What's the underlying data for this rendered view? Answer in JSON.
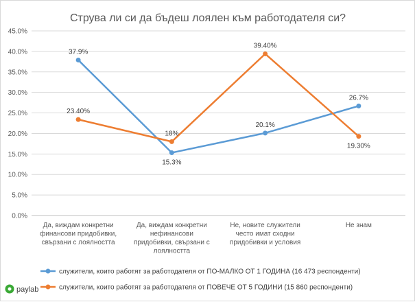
{
  "chart_data": {
    "type": "line",
    "title": "Струва ли си да бъдеш лоялен към работодателя си?",
    "categories": [
      [
        "Да, виждам конкретни",
        "финансови придобивки,",
        "свързани с лоялността"
      ],
      [
        "Да, виждам конкретни",
        "нефинансови",
        "придобивки, свързани с",
        "лоялността"
      ],
      [
        "Не, новите служители",
        "често имат сходни",
        "придобивки и  условия"
      ],
      [
        "Не знам"
      ]
    ],
    "ylim": [
      0,
      45
    ],
    "yticks": [
      "0.0%",
      "5.0%",
      "10.0%",
      "15.0%",
      "20.0%",
      "25.0%",
      "30.0%",
      "35.0%",
      "40.0%",
      "45.0%"
    ],
    "grid": true,
    "legend_position": "bottom",
    "series": [
      {
        "name": "служители, които работят за работодателя от ПО-МАЛКО ОТ 1 ГОДИНА (16 473 респонденти)",
        "color": "#5b9bd5",
        "values": [
          37.9,
          15.3,
          20.1,
          26.7
        ],
        "labels": [
          "37.9%",
          "15.3%",
          "20.1%",
          "26.7%"
        ]
      },
      {
        "name": "служители, които работят за работодателя от ПОВЕЧЕ ОТ 5 ГОДИНИ (15 860 респонденти)",
        "color": "#ed7d31",
        "values": [
          23.4,
          18,
          39.4,
          19.3
        ],
        "labels": [
          "23.40%",
          "18%",
          "39.40%",
          "19.30%"
        ]
      }
    ]
  },
  "logo": {
    "text": "paylab",
    "color": "#3aa935"
  }
}
